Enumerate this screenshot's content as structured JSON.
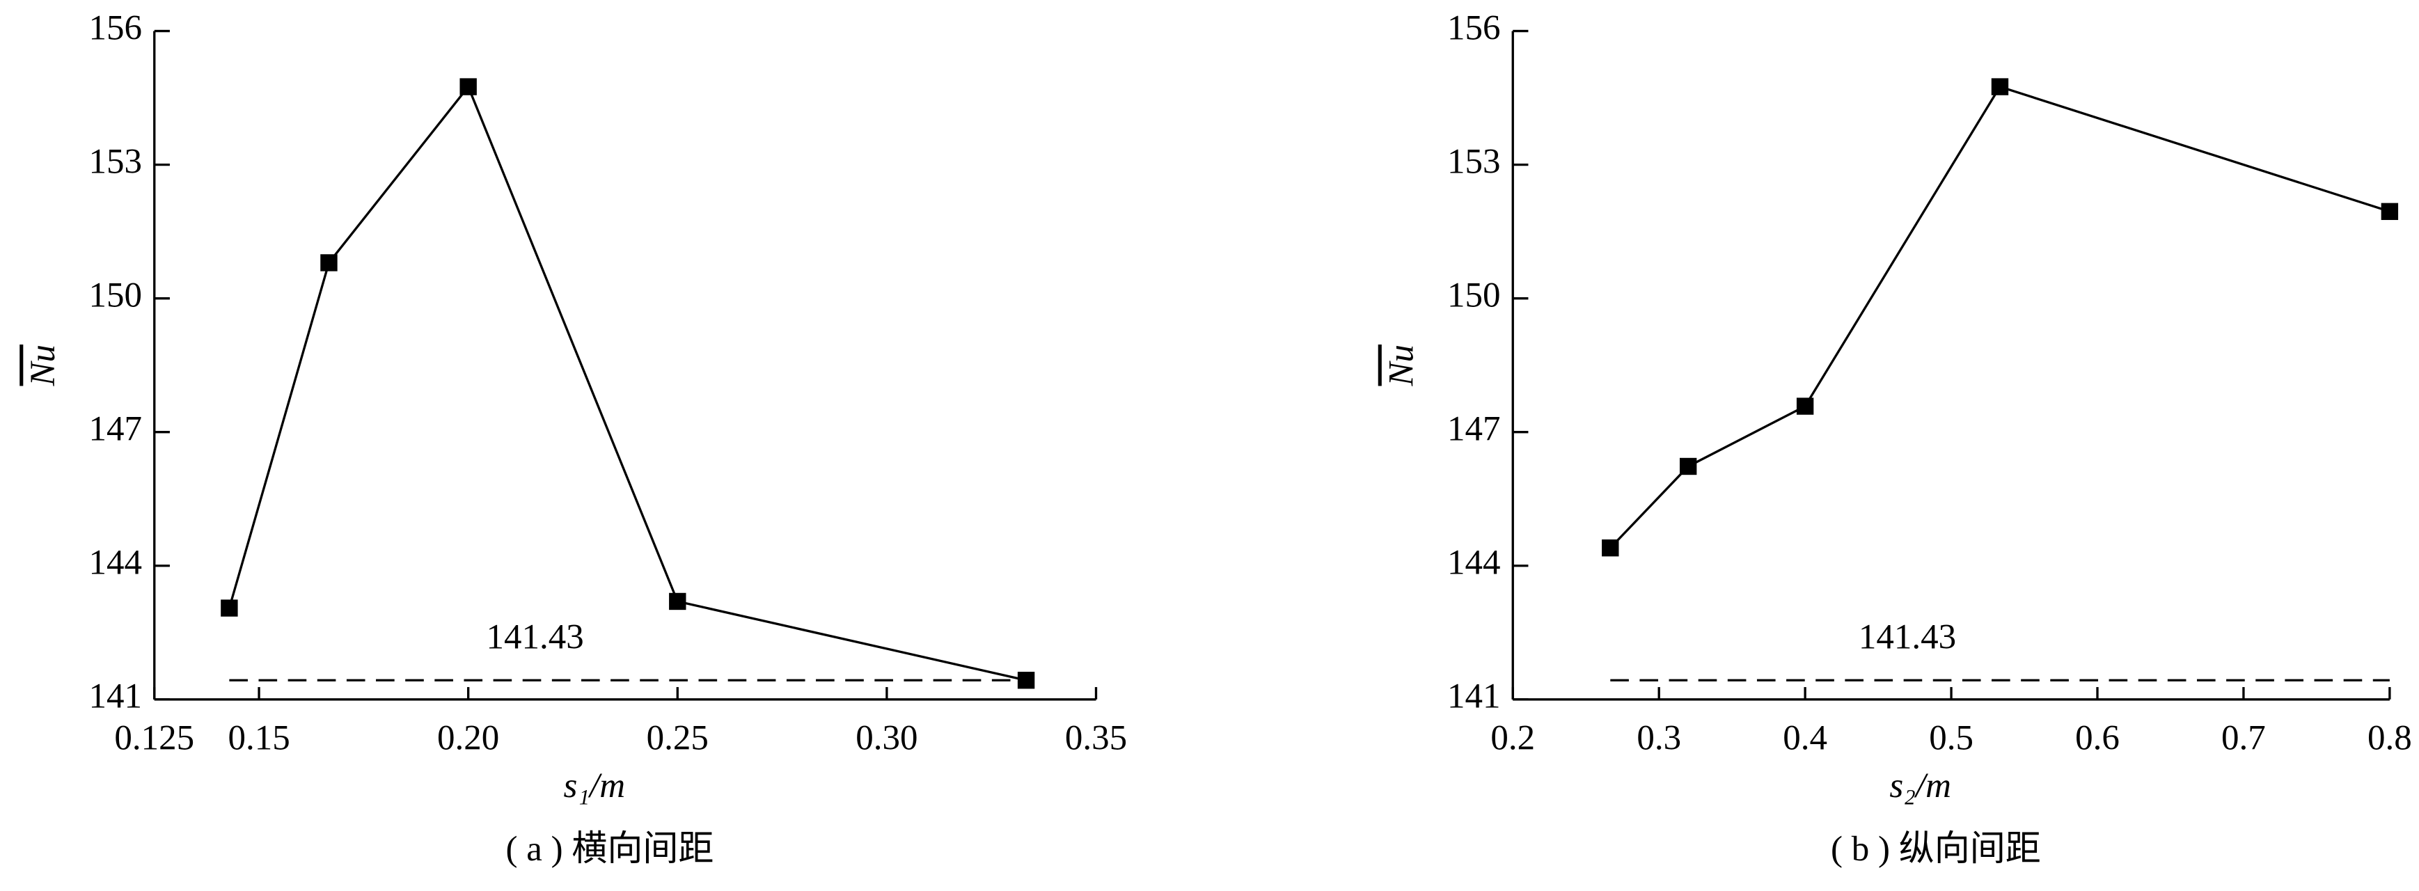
{
  "chart_data": [
    {
      "type": "line",
      "caption": "( a ) 横向间距",
      "x_label": "s₁/m",
      "y_label": "Nu",
      "x": [
        0.1429,
        0.1667,
        0.2,
        0.25,
        0.3333
      ],
      "series": [
        {
          "color": "#000000",
          "values": [
            143.05,
            150.8,
            154.75,
            143.2,
            141.43
          ]
        }
      ],
      "xlim": [
        0.125,
        0.35
      ],
      "xticks": [
        0.125,
        0.15,
        {
          "value": 0.2,
          "label": "0.20"
        },
        0.25,
        {
          "value": 0.3,
          "label": "0.30"
        },
        0.35
      ],
      "ylim": [
        141,
        156
      ],
      "yticks": [
        141,
        144,
        147,
        150,
        153,
        156
      ],
      "reference": 141.43
    },
    {
      "type": "line",
      "caption": "( b ) 纵向间距",
      "x_label": "s₂/m",
      "y_label": "Nu",
      "x": [
        0.2667,
        0.32,
        0.4,
        0.5333,
        0.8
      ],
      "series": [
        {
          "color": "#000000",
          "values": [
            144.4,
            146.23,
            147.58,
            154.75,
            151.95
          ]
        }
      ],
      "xlim": [
        0.2,
        0.8
      ],
      "xticks": [
        0.2,
        0.3,
        0.4,
        0.5,
        0.6,
        0.7,
        0.8
      ],
      "ylim": [
        141,
        156
      ],
      "yticks": [
        141,
        144,
        147,
        150,
        153,
        156
      ],
      "reference": 141.43
    }
  ]
}
